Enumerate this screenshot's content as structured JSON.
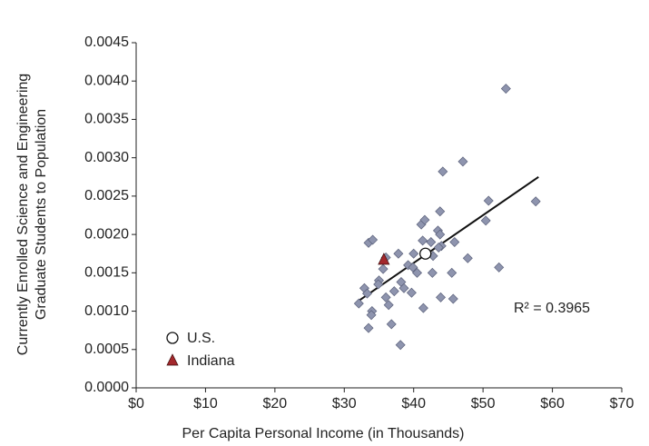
{
  "chart_data": {
    "type": "scatter",
    "ylabel": [
      "Currently Enrolled Science and Engineering",
      "Graduate Students to Population"
    ],
    "xlabel": "Per Capita Personal Income (in Thousands)",
    "xlim": [
      0,
      70
    ],
    "ylim": [
      0,
      0.0045
    ],
    "xticks": [
      {
        "value": 0,
        "label": "$0"
      },
      {
        "value": 10,
        "label": "$10"
      },
      {
        "value": 20,
        "label": "$20"
      },
      {
        "value": 30,
        "label": "$30"
      },
      {
        "value": 40,
        "label": "$40"
      },
      {
        "value": 50,
        "label": "$50"
      },
      {
        "value": 60,
        "label": "$60"
      },
      {
        "value": 70,
        "label": "$70"
      }
    ],
    "yticks": [
      {
        "value": 0,
        "label": "0.0000"
      },
      {
        "value": 0.0005,
        "label": "0.0005"
      },
      {
        "value": 0.001,
        "label": "0.0010"
      },
      {
        "value": 0.0015,
        "label": "0.0015"
      },
      {
        "value": 0.002,
        "label": "0.0020"
      },
      {
        "value": 0.0025,
        "label": "0.0025"
      },
      {
        "value": 0.003,
        "label": "0.0030"
      },
      {
        "value": 0.0035,
        "label": "0.0035"
      },
      {
        "value": 0.004,
        "label": "0.0040"
      },
      {
        "value": 0.0045,
        "label": "0.0045"
      }
    ],
    "series": [
      {
        "color": "#8e94ae",
        "marker": "diamond",
        "x": [
          53.3,
          47.1,
          44.2,
          43.8,
          50.8,
          57.6,
          50.4,
          41.1,
          41.6,
          43.5,
          43.8,
          42.5,
          41.3,
          45.9,
          44.0,
          43.6,
          40.0,
          39.2,
          39.9,
          42.8,
          47.8,
          33.5,
          34.1,
          36.0,
          37.8,
          35.6,
          35.0,
          34.9,
          37.2,
          38.2,
          38.6,
          39.7,
          40.5,
          42.7,
          45.5,
          43.9,
          45.7,
          41.4,
          36.0,
          36.4,
          32.9,
          33.3,
          32.1,
          34.0,
          33.9,
          36.8,
          33.5,
          38.1,
          52.3
        ],
        "y": [
          0.0039,
          0.00295,
          0.00282,
          0.0023,
          0.00244,
          0.00243,
          0.00218,
          0.00213,
          0.00219,
          0.00205,
          0.002,
          0.0019,
          0.00192,
          0.0019,
          0.00185,
          0.00183,
          0.00175,
          0.0016,
          0.00157,
          0.00172,
          0.00169,
          0.00189,
          0.00193,
          0.0017,
          0.00175,
          0.00155,
          0.0014,
          0.00135,
          0.00126,
          0.00138,
          0.0013,
          0.00124,
          0.0015,
          0.0015,
          0.0015,
          0.00118,
          0.00116,
          0.00104,
          0.00118,
          0.00108,
          0.0013,
          0.00123,
          0.0011,
          0.001,
          0.00095,
          0.00083,
          0.00078,
          0.00056,
          0.00157
        ]
      },
      {
        "name": "U.S.",
        "color": "#ffffff",
        "marker": "circle",
        "x": [
          41.7
        ],
        "y": [
          0.00175
        ]
      },
      {
        "name": "Indiana",
        "color": "#a3282c",
        "marker": "triangle",
        "x": [
          35.7
        ],
        "y": [
          0.00167
        ]
      }
    ],
    "trendline": {
      "color": "#111111",
      "x": [
        32,
        58
      ],
      "y": [
        0.00113,
        0.00275
      ]
    },
    "annotation": "R² = 0.3965"
  }
}
